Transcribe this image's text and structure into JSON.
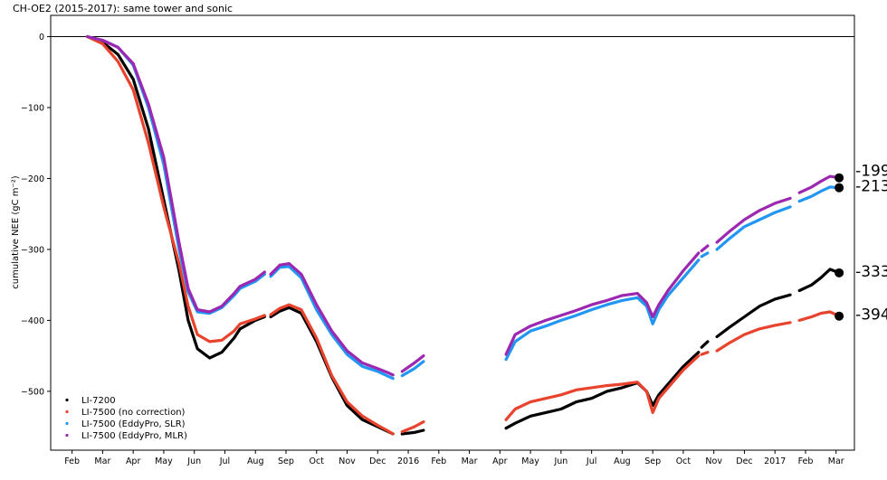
{
  "chart_data": {
    "type": "line",
    "title": "CH-OE2 (2015-2017): same tower and sonic",
    "ylabel": "cumulative NEE (gC m⁻²)",
    "ylim": [
      -583,
      30
    ],
    "xlim": [
      -1.2,
      25.1
    ],
    "y_ticks": [
      0,
      -100,
      -200,
      -300,
      -400,
      -500
    ],
    "y_tick_labels": [
      "0",
      "−100",
      "−200",
      "−300",
      "−400",
      "−500"
    ],
    "x_ticks": [
      -0.5,
      0.5,
      1.5,
      2.5,
      3.5,
      4.5,
      5.5,
      6.5,
      7.5,
      8.5,
      9.5,
      10.5,
      11.5,
      12.5,
      13.5,
      14.5,
      15.5,
      16.5,
      17.5,
      18.5,
      19.5,
      20.5,
      21.5,
      22.5,
      23.5,
      24.5
    ],
    "x_tick_labels": [
      "Feb",
      "Mar",
      "Apr",
      "May",
      "Jun",
      "Jul",
      "Aug",
      "Sep",
      "Oct",
      "Nov",
      "Dec",
      "2016",
      "Feb",
      "Mar",
      "Apr",
      "May",
      "Jun",
      "Jul",
      "Aug",
      "Sep",
      "Oct",
      "Nov",
      "Dec",
      "2017",
      "Feb",
      "Mar"
    ],
    "zero_line": 0,
    "legend_position": "lower-left",
    "x_unit_note": "x values in months since Mar 2015",
    "series": [
      {
        "name": "LI-7200",
        "color": "#000000",
        "end_label": "-333",
        "end_value": -333,
        "end_x": 24.6,
        "segments": [
          [
            [
              0,
              0
            ],
            [
              0.5,
              -8
            ],
            [
              1,
              -25
            ],
            [
              1.5,
              -60
            ],
            [
              2,
              -130
            ],
            [
              2.5,
              -230
            ],
            [
              3,
              -330
            ],
            [
              3.3,
              -400
            ],
            [
              3.6,
              -440
            ],
            [
              4,
              -453
            ],
            [
              4.4,
              -445
            ],
            [
              4.8,
              -425
            ],
            [
              5,
              -412
            ],
            [
              5.5,
              -400
            ],
            [
              5.8,
              -395
            ]
          ],
          [
            [
              6,
              -395
            ],
            [
              6.3,
              -387
            ],
            [
              6.6,
              -382
            ],
            [
              7,
              -390
            ],
            [
              7.5,
              -430
            ],
            [
              8,
              -480
            ],
            [
              8.5,
              -520
            ],
            [
              9,
              -540
            ],
            [
              9.5,
              -550
            ],
            [
              9.8,
              -556
            ],
            [
              10,
              -560
            ]
          ],
          [
            [
              10.3,
              -560
            ],
            [
              10.7,
              -558
            ],
            [
              11,
              -555
            ]
          ],
          [
            [
              13.7,
              -552
            ],
            [
              14,
              -545
            ],
            [
              14.5,
              -535
            ],
            [
              15,
              -530
            ],
            [
              15.5,
              -525
            ],
            [
              16,
              -515
            ],
            [
              16.5,
              -510
            ],
            [
              17,
              -500
            ],
            [
              17.5,
              -495
            ],
            [
              18,
              -488
            ],
            [
              18.3,
              -500
            ],
            [
              18.5,
              -520
            ],
            [
              18.7,
              -505
            ],
            [
              19,
              -490
            ],
            [
              19.5,
              -465
            ],
            [
              20,
              -445
            ]
          ],
          [
            [
              20.1,
              -438
            ],
            [
              20.3,
              -430
            ]
          ],
          [
            [
              20.6,
              -423
            ],
            [
              21,
              -410
            ],
            [
              21.5,
              -395
            ],
            [
              22,
              -380
            ],
            [
              22.5,
              -370
            ],
            [
              23,
              -364
            ]
          ],
          [
            [
              23.3,
              -358
            ],
            [
              23.7,
              -350
            ],
            [
              24,
              -340
            ],
            [
              24.3,
              -328
            ],
            [
              24.6,
              -333
            ]
          ]
        ]
      },
      {
        "name": "LI-7500 (no correction)",
        "color": "#e8432d",
        "end_label": "-394",
        "end_value": -394,
        "end_x": 24.6,
        "segments": [
          [
            [
              0,
              0
            ],
            [
              0.5,
              -10
            ],
            [
              1,
              -35
            ],
            [
              1.5,
              -75
            ],
            [
              2,
              -150
            ],
            [
              2.5,
              -240
            ],
            [
              3,
              -320
            ],
            [
              3.3,
              -380
            ],
            [
              3.6,
              -420
            ],
            [
              4,
              -430
            ],
            [
              4.4,
              -428
            ],
            [
              4.8,
              -415
            ],
            [
              5,
              -405
            ],
            [
              5.5,
              -398
            ],
            [
              5.8,
              -393
            ]
          ],
          [
            [
              6,
              -392
            ],
            [
              6.3,
              -383
            ],
            [
              6.6,
              -378
            ],
            [
              7,
              -385
            ],
            [
              7.5,
              -425
            ],
            [
              8,
              -478
            ],
            [
              8.5,
              -515
            ],
            [
              9,
              -535
            ],
            [
              9.5,
              -548
            ],
            [
              9.8,
              -555
            ],
            [
              10,
              -560
            ]
          ],
          [
            [
              10.3,
              -557
            ],
            [
              10.7,
              -550
            ],
            [
              11,
              -543
            ]
          ],
          [
            [
              13.7,
              -540
            ],
            [
              14,
              -525
            ],
            [
              14.5,
              -515
            ],
            [
              15,
              -510
            ],
            [
              15.5,
              -505
            ],
            [
              16,
              -498
            ],
            [
              16.5,
              -495
            ],
            [
              17,
              -492
            ],
            [
              17.5,
              -490
            ],
            [
              18,
              -487
            ],
            [
              18.3,
              -500
            ],
            [
              18.5,
              -530
            ],
            [
              18.7,
              -510
            ],
            [
              19,
              -495
            ],
            [
              19.5,
              -470
            ],
            [
              20,
              -450
            ]
          ],
          [
            [
              20.1,
              -448
            ],
            [
              20.3,
              -445
            ]
          ],
          [
            [
              20.6,
              -443
            ],
            [
              21,
              -432
            ],
            [
              21.5,
              -420
            ],
            [
              22,
              -412
            ],
            [
              22.5,
              -407
            ],
            [
              23,
              -403
            ]
          ],
          [
            [
              23.3,
              -400
            ],
            [
              23.7,
              -395
            ],
            [
              24,
              -390
            ],
            [
              24.3,
              -388
            ],
            [
              24.6,
              -394
            ]
          ]
        ]
      },
      {
        "name": "LI-7500 (EddyPro, SLR)",
        "color": "#2196f3",
        "end_label": "-213",
        "end_value": -213,
        "end_x": 24.6,
        "segments": [
          [
            [
              0,
              0
            ],
            [
              0.5,
              -5
            ],
            [
              1,
              -15
            ],
            [
              1.5,
              -40
            ],
            [
              2,
              -100
            ],
            [
              2.5,
              -180
            ],
            [
              3,
              -300
            ],
            [
              3.3,
              -360
            ],
            [
              3.6,
              -388
            ],
            [
              4,
              -390
            ],
            [
              4.4,
              -382
            ],
            [
              4.8,
              -365
            ],
            [
              5,
              -355
            ],
            [
              5.5,
              -345
            ],
            [
              5.8,
              -335
            ]
          ],
          [
            [
              6,
              -338
            ],
            [
              6.3,
              -325
            ],
            [
              6.6,
              -324
            ],
            [
              7,
              -340
            ],
            [
              7.5,
              -385
            ],
            [
              8,
              -420
            ],
            [
              8.5,
              -448
            ],
            [
              9,
              -465
            ],
            [
              9.5,
              -472
            ],
            [
              9.8,
              -478
            ],
            [
              10,
              -482
            ]
          ],
          [
            [
              10.3,
              -478
            ],
            [
              10.7,
              -468
            ],
            [
              11,
              -458
            ]
          ],
          [
            [
              13.7,
              -455
            ],
            [
              14,
              -430
            ],
            [
              14.5,
              -415
            ],
            [
              15,
              -408
            ],
            [
              15.5,
              -400
            ],
            [
              16,
              -393
            ],
            [
              16.5,
              -385
            ],
            [
              17,
              -378
            ],
            [
              17.5,
              -372
            ],
            [
              18,
              -368
            ],
            [
              18.3,
              -380
            ],
            [
              18.5,
              -405
            ],
            [
              18.7,
              -385
            ],
            [
              19,
              -365
            ],
            [
              19.5,
              -340
            ],
            [
              20,
              -315
            ]
          ],
          [
            [
              20.1,
              -310
            ],
            [
              20.3,
              -305
            ]
          ],
          [
            [
              20.6,
              -300
            ],
            [
              21,
              -285
            ],
            [
              21.5,
              -268
            ],
            [
              22,
              -258
            ],
            [
              22.5,
              -248
            ],
            [
              23,
              -240
            ]
          ],
          [
            [
              23.3,
              -232
            ],
            [
              23.7,
              -225
            ],
            [
              24,
              -218
            ],
            [
              24.3,
              -212
            ],
            [
              24.6,
              -213
            ]
          ]
        ]
      },
      {
        "name": "LI-7500 (EddyPro, MLR)",
        "color": "#9c27b0",
        "end_label": "-199",
        "end_value": -199,
        "end_x": 24.6,
        "segments": [
          [
            [
              0,
              0
            ],
            [
              0.5,
              -5
            ],
            [
              1,
              -15
            ],
            [
              1.5,
              -38
            ],
            [
              2,
              -95
            ],
            [
              2.5,
              -170
            ],
            [
              3,
              -290
            ],
            [
              3.3,
              -355
            ],
            [
              3.6,
              -385
            ],
            [
              4,
              -388
            ],
            [
              4.4,
              -380
            ],
            [
              4.8,
              -362
            ],
            [
              5,
              -352
            ],
            [
              5.5,
              -342
            ],
            [
              5.8,
              -332
            ]
          ],
          [
            [
              6,
              -335
            ],
            [
              6.3,
              -322
            ],
            [
              6.6,
              -320
            ],
            [
              7,
              -335
            ],
            [
              7.5,
              -378
            ],
            [
              8,
              -415
            ],
            [
              8.5,
              -443
            ],
            [
              9,
              -460
            ],
            [
              9.5,
              -468
            ],
            [
              9.8,
              -473
            ],
            [
              10,
              -477
            ]
          ],
          [
            [
              10.3,
              -472
            ],
            [
              10.7,
              -460
            ],
            [
              11,
              -450
            ]
          ],
          [
            [
              13.7,
              -448
            ],
            [
              14,
              -420
            ],
            [
              14.5,
              -408
            ],
            [
              15,
              -400
            ],
            [
              15.5,
              -393
            ],
            [
              16,
              -386
            ],
            [
              16.5,
              -378
            ],
            [
              17,
              -372
            ],
            [
              17.5,
              -365
            ],
            [
              18,
              -362
            ],
            [
              18.3,
              -375
            ],
            [
              18.5,
              -395
            ],
            [
              18.7,
              -378
            ],
            [
              19,
              -358
            ],
            [
              19.5,
              -330
            ],
            [
              20,
              -305
            ]
          ],
          [
            [
              20.1,
              -302
            ],
            [
              20.3,
              -295
            ]
          ],
          [
            [
              20.6,
              -290
            ],
            [
              21,
              -275
            ],
            [
              21.5,
              -258
            ],
            [
              22,
              -245
            ],
            [
              22.5,
              -235
            ],
            [
              23,
              -228
            ]
          ],
          [
            [
              23.3,
              -220
            ],
            [
              23.7,
              -212
            ],
            [
              24,
              -204
            ],
            [
              24.3,
              -197
            ],
            [
              24.6,
              -199
            ]
          ]
        ]
      }
    ]
  }
}
